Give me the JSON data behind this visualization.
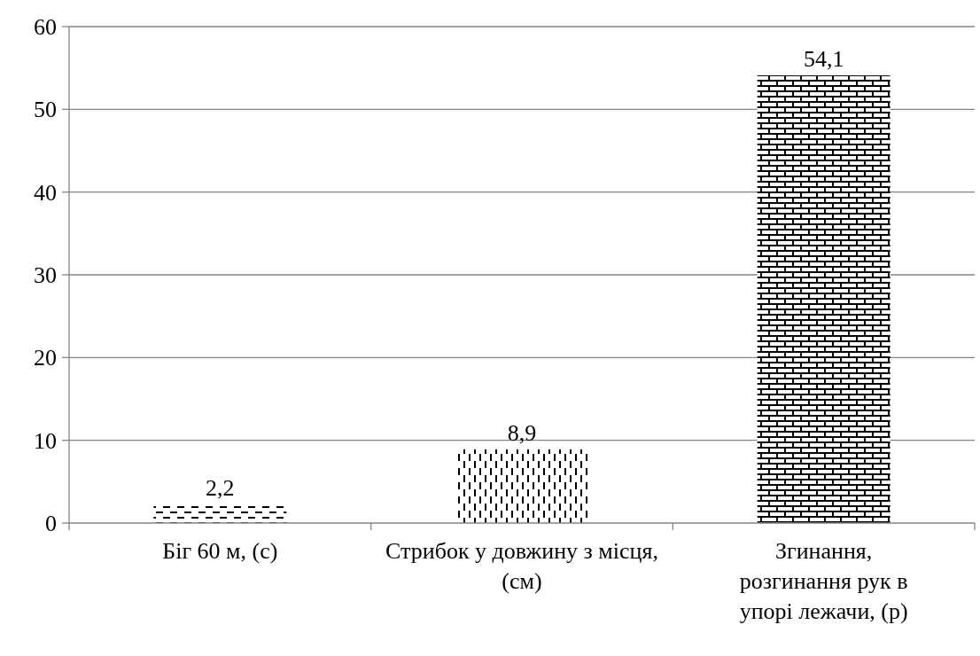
{
  "chart_data": {
    "type": "bar",
    "categories": [
      "Біг 60 м, (с)",
      "Стрибок у довжину з місця, (см)",
      "Згинання, розгинання рук в упорі лежачи, (р)"
    ],
    "values": [
      2.2,
      8.9,
      54.1
    ],
    "colors": [
      "#000000",
      "#000000",
      "#000000"
    ],
    "ylim": [
      0,
      60
    ],
    "yticks": [
      0,
      10,
      20,
      30,
      40,
      50,
      60
    ],
    "grid": "y",
    "value_labels": [
      "2,2",
      "8,9",
      "54,1"
    ]
  }
}
